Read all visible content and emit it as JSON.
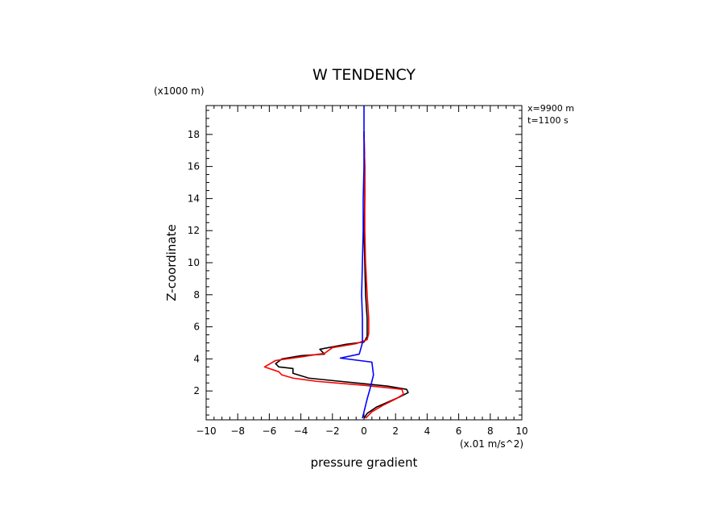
{
  "chart_data": {
    "type": "line",
    "title": "W TENDENCY",
    "xlabel": "pressure gradient",
    "ylabel": "Z-coordinate",
    "x_units": "(x.01 m/s^2)",
    "y_units": "(x1000 m)",
    "annotations": [
      "x=9900 m",
      "t=1100 s"
    ],
    "xlim": [
      -10,
      10
    ],
    "ylim": [
      0.2,
      19.8
    ],
    "xticks": [
      -10,
      -8,
      -6,
      -4,
      -2,
      0,
      2,
      4,
      6,
      8,
      10
    ],
    "yticks": [
      2,
      4,
      6,
      8,
      10,
      12,
      14,
      16,
      18
    ],
    "grid": false,
    "series": [
      {
        "color": "#000000",
        "points": [
          [
            0,
            0.3
          ],
          [
            0.2,
            0.6
          ],
          [
            0.8,
            1.0
          ],
          [
            1.5,
            1.3
          ],
          [
            2.2,
            1.6
          ],
          [
            2.8,
            1.9
          ],
          [
            2.7,
            2.1
          ],
          [
            1.5,
            2.3
          ],
          [
            0,
            2.45
          ],
          [
            -1.5,
            2.6
          ],
          [
            -3.5,
            2.8
          ],
          [
            -4.5,
            3.1
          ],
          [
            -4.5,
            3.4
          ],
          [
            -5.4,
            3.5
          ],
          [
            -5.6,
            3.7
          ],
          [
            -5.2,
            4.0
          ],
          [
            -4.0,
            4.2
          ],
          [
            -2.5,
            4.3
          ],
          [
            -2.8,
            4.6
          ],
          [
            -1.2,
            4.9
          ],
          [
            0,
            5.05
          ],
          [
            0.2,
            5.4
          ],
          [
            0.2,
            6.5
          ],
          [
            0.1,
            8.0
          ],
          [
            0.05,
            10.0
          ],
          [
            0.0,
            12.0
          ],
          [
            0.05,
            14.0
          ],
          [
            0.05,
            16.0
          ],
          [
            0.0,
            18.2
          ]
        ]
      },
      {
        "color": "#ff0000",
        "points": [
          [
            0.1,
            0.3
          ],
          [
            0.5,
            0.7
          ],
          [
            1.2,
            1.1
          ],
          [
            2.0,
            1.5
          ],
          [
            2.5,
            1.8
          ],
          [
            2.4,
            2.1
          ],
          [
            1.5,
            2.2
          ],
          [
            0,
            2.35
          ],
          [
            -1.2,
            2.45
          ],
          [
            -3.0,
            2.6
          ],
          [
            -4.5,
            2.8
          ],
          [
            -5.2,
            3.0
          ],
          [
            -5.4,
            3.2
          ],
          [
            -6.3,
            3.5
          ],
          [
            -5.6,
            3.9
          ],
          [
            -3.8,
            4.15
          ],
          [
            -2.5,
            4.35
          ],
          [
            -2.0,
            4.7
          ],
          [
            -0.5,
            4.95
          ],
          [
            0.2,
            5.2
          ],
          [
            0.3,
            5.6
          ],
          [
            0.3,
            6.5
          ],
          [
            0.2,
            8.0
          ],
          [
            0.1,
            10.0
          ],
          [
            0.05,
            12.0
          ],
          [
            0.05,
            14.0
          ],
          [
            0.05,
            16.0
          ],
          [
            0.0,
            18.0
          ]
        ]
      },
      {
        "color": "#0000ff",
        "points": [
          [
            -0.1,
            0.3
          ],
          [
            0.05,
            0.9
          ],
          [
            0.2,
            1.5
          ],
          [
            0.4,
            2.2
          ],
          [
            0.6,
            3.0
          ],
          [
            0.5,
            3.8
          ],
          [
            -1.5,
            4.05
          ],
          [
            -0.3,
            4.3
          ],
          [
            -0.1,
            5.0
          ],
          [
            -0.1,
            6.5
          ],
          [
            -0.15,
            8.0
          ],
          [
            -0.1,
            10.0
          ],
          [
            -0.05,
            12.0
          ],
          [
            -0.05,
            14.0
          ],
          [
            0.0,
            16.0
          ],
          [
            0.0,
            18.0
          ],
          [
            0.0,
            19.8
          ]
        ]
      }
    ]
  }
}
